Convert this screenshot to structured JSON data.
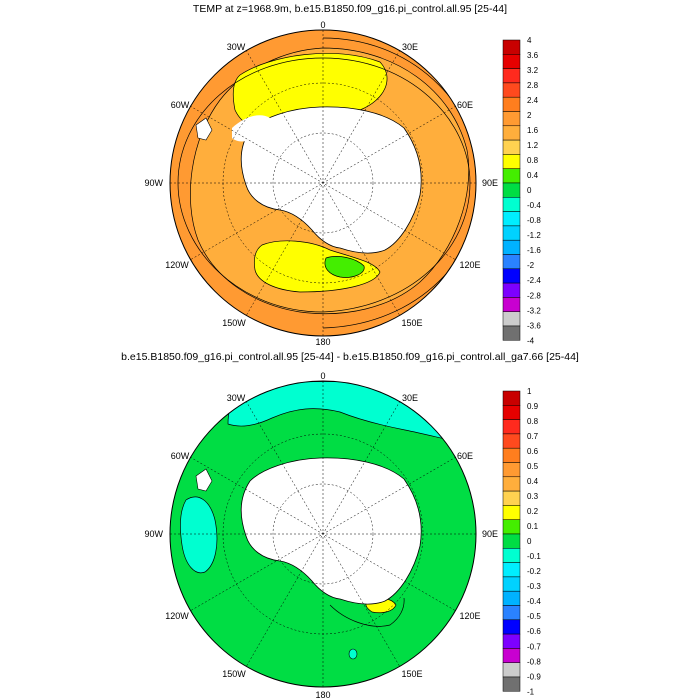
{
  "panels": [
    {
      "title": "TEMP at z=1968.9m, b.e15.B1850.f09_g16.pi_control.all.95 [25-44]",
      "colorbar": {
        "labels": [
          "4",
          "3.6",
          "3.2",
          "2.8",
          "2.4",
          "2",
          "1.6",
          "1.2",
          "0.8",
          "0.4",
          "0",
          "-0.4",
          "-0.8",
          "-1.2",
          "-1.6",
          "-2",
          "-2.4",
          "-2.8",
          "-3.2",
          "-3.6",
          "-4"
        ],
        "colors": [
          "#c80000",
          "#e60000",
          "#ff2a1e",
          "#ff4a1e",
          "#ff7e1e",
          "#ff9a32",
          "#ffae3c",
          "#ffd250",
          "#ffff00",
          "#44ee00",
          "#00dd44",
          "#00ffd0",
          "#00eeff",
          "#00d2ff",
          "#00b2ff",
          "#2a82ff",
          "#0000ff",
          "#7d00ff",
          "#c800d0",
          "#cccccc",
          "#707070"
        ]
      }
    },
    {
      "title": "b.e15.B1850.f09_g16.pi_control.all.95 [25-44] - b.e15.B1850.f09_g16.pi_control.all_ga7.66 [25-44]",
      "colorbar": {
        "labels": [
          "1",
          "0.9",
          "0.8",
          "0.7",
          "0.6",
          "0.5",
          "0.4",
          "0.3",
          "0.2",
          "0.1",
          "0",
          "-0.1",
          "-0.2",
          "-0.3",
          "-0.4",
          "-0.5",
          "-0.6",
          "-0.7",
          "-0.8",
          "-0.9",
          "-1"
        ],
        "colors": [
          "#c80000",
          "#e60000",
          "#ff2a1e",
          "#ff4a1e",
          "#ff7e1e",
          "#ff9a32",
          "#ffae3c",
          "#ffd250",
          "#ffff00",
          "#44ee00",
          "#00dd44",
          "#00ffd0",
          "#00eeff",
          "#00d2ff",
          "#00b2ff",
          "#2a82ff",
          "#0000ff",
          "#7d00ff",
          "#c800d0",
          "#cccccc",
          "#707070"
        ]
      }
    }
  ],
  "map_labels": {
    "top": "0",
    "bottom": "180",
    "left": "90W",
    "right": "90E",
    "upper_left": "30W",
    "upper_right": "30E",
    "mid_left_upper": "60W",
    "mid_right_upper": "60E",
    "mid_left_lower": "120W",
    "mid_right_lower": "120E",
    "lower_left": "150W",
    "lower_right": "150E"
  },
  "colors": {
    "ocean_base_1": "#ff9a32",
    "ocean_warm_1": "#ffae3c",
    "ocean_core_1": "#ffff00",
    "ocean_green_1": "#44ee00",
    "ocean_base_2": "#00dd44",
    "ocean_cold_2": "#00ffd0",
    "ocean_warm_2": "#ffff00",
    "land": "#ffffff"
  }
}
